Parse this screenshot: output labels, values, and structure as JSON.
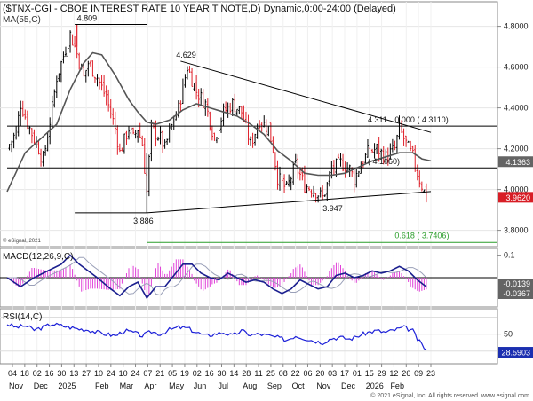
{
  "window": {
    "title": "($TNX-CGI - CBOE INTEREST RATE 10 YEAR T NOTE,D) Dynamic,0:00-24:00 (Delayed)",
    "ma_label": "MA(55,C)",
    "macd_label": "MACD(12,26,9,C)",
    "rsi_label": "RSI(14,C)",
    "copyright_inner": "© eSignal, 2021",
    "copyright_footer": "© 2021 eSignal, Inc. All rights reserved. www.esignal.com"
  },
  "colors": {
    "up": "#000000",
    "down": "#e0202a",
    "ma": "#555555",
    "macd": "#1b1f8f",
    "signal": "#9aa0b8",
    "hist": "#e040d8",
    "rsi": "#1b1fd8",
    "fib": "#2a9d2a",
    "price_tag": "#646464",
    "last_tag": "#d81e26",
    "macd_tag": "#646464",
    "rsi_tag": "#1b2fb0"
  },
  "chart_data": [
    {
      "type": "candlestick",
      "panel": "price",
      "ylim": [
        3.72,
        4.92
      ],
      "yticks": [
        "4.8000",
        "4.6000",
        "4.4000",
        "4.2000",
        "4.0000",
        "3.8000"
      ],
      "xlim": [
        0,
        94
      ],
      "close_path": [
        [
          0,
          4.2
        ],
        [
          2,
          4.28
        ],
        [
          3,
          4.42
        ],
        [
          5,
          4.3
        ],
        [
          7,
          4.2
        ],
        [
          8,
          4.14
        ],
        [
          10,
          4.4
        ],
        [
          11,
          4.55
        ],
        [
          12,
          4.62
        ],
        [
          14,
          4.76
        ],
        [
          15,
          4.7
        ],
        [
          16,
          4.63
        ],
        [
          17,
          4.55
        ],
        [
          18,
          4.62
        ],
        [
          20,
          4.55
        ],
        [
          22,
          4.45
        ],
        [
          24,
          4.3
        ],
        [
          25,
          4.18
        ],
        [
          27,
          4.3
        ],
        [
          28,
          4.25
        ],
        [
          29,
          4.3
        ],
        [
          30,
          4.22
        ],
        [
          31,
          3.99
        ],
        [
          32,
          4.3
        ],
        [
          34,
          4.25
        ],
        [
          35,
          4.2
        ],
        [
          36,
          4.28
        ],
        [
          38,
          4.4
        ],
        [
          40,
          4.6
        ],
        [
          42,
          4.48
        ],
        [
          44,
          4.42
        ],
        [
          46,
          4.25
        ],
        [
          48,
          4.38
        ],
        [
          50,
          4.42
        ],
        [
          52,
          4.38
        ],
        [
          54,
          4.22
        ],
        [
          56,
          4.34
        ],
        [
          58,
          4.3
        ],
        [
          59,
          4.2
        ],
        [
          60,
          4.06
        ],
        [
          62,
          4.0
        ],
        [
          64,
          4.12
        ],
        [
          66,
          4.02
        ],
        [
          68,
          4.0
        ],
        [
          70,
          3.96
        ],
        [
          71,
          4.02
        ],
        [
          72,
          4.1
        ],
        [
          74,
          4.13
        ],
        [
          76,
          4.1
        ],
        [
          77,
          4.05
        ],
        [
          78,
          4.1
        ],
        [
          80,
          4.18
        ],
        [
          82,
          4.2
        ],
        [
          84,
          4.16
        ],
        [
          86,
          4.2
        ],
        [
          87,
          4.3
        ],
        [
          88,
          4.25
        ],
        [
          89,
          4.2
        ],
        [
          90,
          4.16
        ],
        [
          91,
          4.08
        ],
        [
          92,
          4.02
        ],
        [
          93,
          3.96
        ]
      ],
      "ma_path": [
        [
          0,
          3.99
        ],
        [
          4,
          4.18
        ],
        [
          8,
          4.26
        ],
        [
          11,
          4.32
        ],
        [
          14,
          4.49
        ],
        [
          17,
          4.62
        ],
        [
          19,
          4.67
        ],
        [
          21,
          4.66
        ],
        [
          24,
          4.56
        ],
        [
          27,
          4.44
        ],
        [
          29,
          4.38
        ],
        [
          31,
          4.33
        ],
        [
          33,
          4.32
        ],
        [
          36,
          4.34
        ],
        [
          39,
          4.39
        ],
        [
          42,
          4.42
        ],
        [
          45,
          4.4
        ],
        [
          48,
          4.38
        ],
        [
          51,
          4.36
        ],
        [
          54,
          4.32
        ],
        [
          57,
          4.27
        ],
        [
          60,
          4.19
        ],
        [
          63,
          4.14
        ],
        [
          66,
          4.08
        ],
        [
          69,
          4.07
        ],
        [
          72,
          4.07
        ],
        [
          75,
          4.08
        ],
        [
          78,
          4.11
        ],
        [
          81,
          4.14
        ],
        [
          84,
          4.16
        ],
        [
          87,
          4.18
        ],
        [
          90,
          4.18
        ],
        [
          92,
          4.15
        ],
        [
          94,
          4.14
        ]
      ],
      "annotations": [
        {
          "text": "4.809",
          "x": 15.5,
          "y": 4.809
        },
        {
          "text": "4.629",
          "x": 37.5,
          "y": 4.629
        },
        {
          "text": "3.886",
          "x": 28,
          "y": 3.886
        },
        {
          "text": "3.947",
          "x": 70,
          "y": 3.947
        },
        {
          "text": "4.311",
          "x": 80,
          "y": 4.311
        },
        {
          "text": "0.000  ( 4.3110)",
          "x": 86,
          "y": 4.311
        },
        {
          "text": "( 4.1060)",
          "x": 80,
          "y": 4.106
        },
        {
          "text": "0.618  ( 3.7406)",
          "x": 86,
          "y": 3.7406
        }
      ],
      "lines": [
        {
          "name": "high-mark",
          "x1": 15,
          "y1": 4.809,
          "x2": 31,
          "y2": 4.809
        },
        {
          "name": "descending-trendline",
          "x1": 38.5,
          "y1": 4.629,
          "x2": 94,
          "y2": 4.28
        },
        {
          "name": "resistance-4311",
          "x1": 0,
          "y1": 4.311,
          "x2": 109,
          "y2": 4.311
        },
        {
          "name": "support-4106",
          "x1": 0,
          "y1": 4.106,
          "x2": 109,
          "y2": 4.106
        },
        {
          "name": "low-mark",
          "x1": 15,
          "y1": 3.886,
          "x2": 31,
          "y2": 3.886
        },
        {
          "name": "ascending-trendline",
          "x1": 31,
          "y1": 3.886,
          "x2": 94,
          "y2": 3.99
        },
        {
          "name": "fib-0618",
          "x1": 31,
          "y1": 3.7406,
          "x2": 109,
          "y2": 3.7406
        }
      ],
      "last_values": {
        "ma": "4.1363",
        "close": "3.9620"
      }
    },
    {
      "type": "line",
      "panel": "macd",
      "ylim": [
        -0.13,
        0.13
      ],
      "yticks": [
        "0.1"
      ],
      "series": [
        {
          "name": "MACD",
          "values": [
            [
              0,
              0.0
            ],
            [
              3,
              -0.04
            ],
            [
              6,
              0.0
            ],
            [
              9,
              0.03
            ],
            [
              12,
              0.06
            ],
            [
              14,
              0.1
            ],
            [
              16,
              0.06
            ],
            [
              18,
              0.03
            ],
            [
              20,
              0.0
            ],
            [
              23,
              -0.05
            ],
            [
              25,
              -0.08
            ],
            [
              27,
              -0.04
            ],
            [
              29,
              -0.02
            ],
            [
              31,
              -0.09
            ],
            [
              33,
              -0.04
            ],
            [
              35,
              -0.04
            ],
            [
              37,
              0.01
            ],
            [
              39,
              0.06
            ],
            [
              41,
              0.06
            ],
            [
              43,
              0.02
            ],
            [
              45,
              0.0
            ],
            [
              47,
              -0.01
            ],
            [
              49,
              0.02
            ],
            [
              51,
              0.0
            ],
            [
              53,
              -0.02
            ],
            [
              55,
              -0.01
            ],
            [
              57,
              -0.02
            ],
            [
              59,
              -0.05
            ],
            [
              61,
              -0.07
            ],
            [
              63,
              -0.05
            ],
            [
              65,
              -0.01
            ],
            [
              67,
              -0.03
            ],
            [
              69,
              -0.05
            ],
            [
              71,
              -0.04
            ],
            [
              73,
              0.01
            ],
            [
              75,
              0.02
            ],
            [
              77,
              0.0
            ],
            [
              79,
              0.01
            ],
            [
              81,
              0.03
            ],
            [
              83,
              0.02
            ],
            [
              85,
              0.03
            ],
            [
              87,
              0.05
            ],
            [
              89,
              0.03
            ],
            [
              91,
              -0.01
            ],
            [
              93,
              -0.04
            ]
          ]
        }
      ],
      "last_values": {
        "signal": "-0.0139",
        "macd": "-0.0367"
      }
    },
    {
      "type": "line",
      "panel": "rsi",
      "ylim": [
        15,
        80
      ],
      "yticks": [
        "50"
      ],
      "series": [
        {
          "name": "RSI",
          "values": [
            [
              0,
              62
            ],
            [
              2,
              58
            ],
            [
              4,
              60
            ],
            [
              6,
              55
            ],
            [
              8,
              58
            ],
            [
              10,
              62
            ],
            [
              12,
              60
            ],
            [
              14,
              58
            ],
            [
              16,
              56
            ],
            [
              18,
              55
            ],
            [
              20,
              52
            ],
            [
              22,
              50
            ],
            [
              24,
              48
            ],
            [
              26,
              54
            ],
            [
              28,
              52
            ],
            [
              30,
              48
            ],
            [
              32,
              53
            ],
            [
              34,
              50
            ],
            [
              36,
              55
            ],
            [
              38,
              58
            ],
            [
              40,
              57
            ],
            [
              42,
              52
            ],
            [
              44,
              48
            ],
            [
              46,
              50
            ],
            [
              48,
              52
            ],
            [
              50,
              48
            ],
            [
              52,
              54
            ],
            [
              54,
              49
            ],
            [
              56,
              50
            ],
            [
              58,
              48
            ],
            [
              60,
              46
            ],
            [
              62,
              43
            ],
            [
              64,
              48
            ],
            [
              66,
              45
            ],
            [
              68,
              42
            ],
            [
              70,
              40
            ],
            [
              72,
              45
            ],
            [
              74,
              46
            ],
            [
              76,
              44
            ],
            [
              78,
              48
            ],
            [
              80,
              52
            ],
            [
              82,
              54
            ],
            [
              84,
              52
            ],
            [
              86,
              55
            ],
            [
              88,
              58
            ],
            [
              90,
              54
            ],
            [
              91,
              44
            ],
            [
              93,
              31
            ]
          ]
        }
      ],
      "last_value": "28.5903"
    }
  ],
  "x_axis": {
    "days": [
      "04",
      "18",
      "02",
      "16",
      "30",
      "13",
      "27",
      "10",
      "24",
      "10",
      "24",
      "07",
      "21",
      "05",
      "19",
      "02",
      "16",
      "30",
      "14",
      "28",
      "11",
      "25",
      "08",
      "22",
      "06",
      "20",
      "03",
      "17",
      "01",
      "15",
      "29",
      "12",
      "26",
      "09",
      "23"
    ],
    "months": [
      "Nov",
      "Dec",
      "2025",
      "Feb",
      "Mar",
      "Apr",
      "May",
      "Jun",
      "Jul",
      "Aug",
      "Sep",
      "Oct",
      "Nov",
      "Dec",
      "2026",
      "Feb"
    ]
  }
}
